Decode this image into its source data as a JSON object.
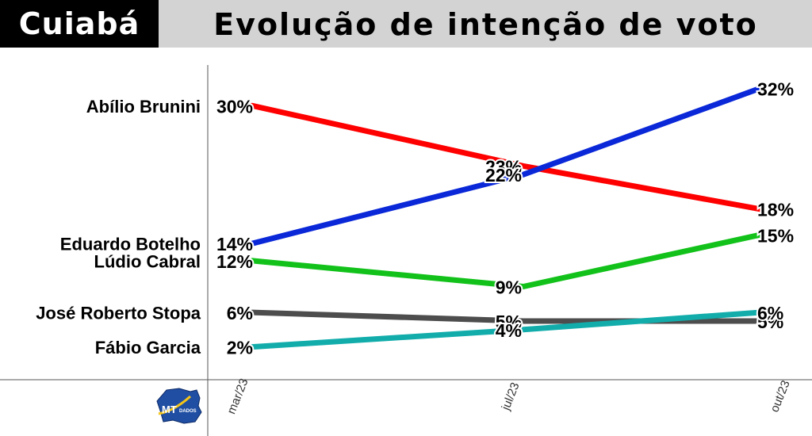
{
  "header": {
    "city": "Cuiabá",
    "title": "Evolução de intenção de voto"
  },
  "logo": {
    "text_mt": "MT",
    "text_dados": "DADOS",
    "icon": "map-logo-icon",
    "color": "#1f4ea3"
  },
  "chart_data": {
    "type": "line",
    "title": "Evolução de intenção de voto",
    "x": [
      "mar/23",
      "jul/23",
      "out/23"
    ],
    "ylim": [
      0,
      34
    ],
    "grid": false,
    "legend": "left",
    "series": [
      {
        "name": "Abílio Brunini",
        "color": "#ff0000",
        "values": [
          30,
          23,
          18
        ],
        "labels": [
          "30%",
          "23%",
          "18%"
        ]
      },
      {
        "name": "Eduardo Botelho",
        "color": "#0a28d8",
        "values": [
          14,
          22,
          32
        ],
        "labels": [
          "14%",
          "22%",
          "32%"
        ]
      },
      {
        "name": "Lúdio Cabral",
        "color": "#12c21a",
        "values": [
          12,
          9,
          15
        ],
        "labels": [
          "12%",
          "9%",
          "15%"
        ]
      },
      {
        "name": "José Roberto Stopa",
        "color": "#4d4d4d",
        "values": [
          6,
          5,
          5
        ],
        "labels": [
          "6%",
          "5%",
          "5%"
        ]
      },
      {
        "name": "Fábio Garcia",
        "color": "#12adab",
        "values": [
          2,
          4,
          6
        ],
        "labels": [
          "2%",
          "4%",
          "6%"
        ]
      }
    ]
  }
}
